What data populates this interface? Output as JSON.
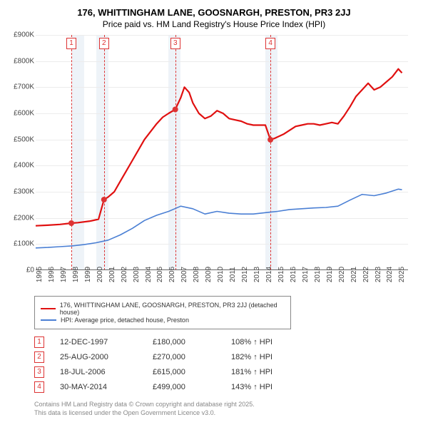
{
  "title": "176, WHITTINGHAM LANE, GOOSNARGH, PRESTON, PR3 2JJ",
  "subtitle": "Price paid vs. HM Land Registry's House Price Index (HPI)",
  "chart": {
    "type": "line",
    "background_color": "#ffffff",
    "grid_color": "#ececec",
    "band_color": "#eef3f8",
    "x": {
      "min": 1995,
      "max": 2025.8,
      "ticks": [
        1995,
        1996,
        1997,
        1998,
        1999,
        2000,
        2001,
        2002,
        2003,
        2004,
        2005,
        2006,
        2007,
        2008,
        2009,
        2010,
        2011,
        2012,
        2013,
        2014,
        2015,
        2016,
        2017,
        2018,
        2019,
        2020,
        2021,
        2022,
        2023,
        2024,
        2025
      ],
      "label_fontsize": 10
    },
    "y": {
      "min": 0,
      "max": 900000,
      "tick_step": 100000,
      "format_prefix": "£",
      "format_suffix": "K",
      "label_fontsize": 10
    },
    "bands": [
      {
        "from": 1998,
        "to": 1999
      },
      {
        "from": 2000,
        "to": 2001
      },
      {
        "from": 2006,
        "to": 2007
      },
      {
        "from": 2014,
        "to": 2015
      }
    ],
    "events": [
      {
        "n": "1",
        "x": 1997.95
      },
      {
        "n": "2",
        "x": 2000.65
      },
      {
        "n": "3",
        "x": 2006.55
      },
      {
        "n": "4",
        "x": 2014.42
      }
    ],
    "series": [
      {
        "key": "price_paid",
        "label": "176, WHITTINGHAM LANE, GOOSNARGH, PRESTON, PR3 2JJ (detached house)",
        "color": "#e01010",
        "width": 2.2,
        "points": [
          [
            1995,
            170000
          ],
          [
            1996,
            172000
          ],
          [
            1997,
            175000
          ],
          [
            1997.95,
            180000
          ],
          [
            1998.5,
            182000
          ],
          [
            1999.5,
            188000
          ],
          [
            2000.2,
            195000
          ],
          [
            2000.65,
            270000
          ],
          [
            2001,
            280000
          ],
          [
            2001.5,
            300000
          ],
          [
            2002,
            340000
          ],
          [
            2002.5,
            380000
          ],
          [
            2003,
            420000
          ],
          [
            2003.5,
            460000
          ],
          [
            2004,
            500000
          ],
          [
            2004.5,
            530000
          ],
          [
            2005,
            560000
          ],
          [
            2005.5,
            585000
          ],
          [
            2006,
            600000
          ],
          [
            2006.55,
            615000
          ],
          [
            2007,
            660000
          ],
          [
            2007.3,
            700000
          ],
          [
            2007.7,
            680000
          ],
          [
            2008,
            640000
          ],
          [
            2008.5,
            600000
          ],
          [
            2009,
            580000
          ],
          [
            2009.5,
            590000
          ],
          [
            2010,
            610000
          ],
          [
            2010.5,
            600000
          ],
          [
            2011,
            580000
          ],
          [
            2011.5,
            575000
          ],
          [
            2012,
            570000
          ],
          [
            2012.5,
            560000
          ],
          [
            2013,
            555000
          ],
          [
            2013.5,
            555000
          ],
          [
            2014,
            555000
          ],
          [
            2014.42,
            499000
          ],
          [
            2014.8,
            505000
          ],
          [
            2015.5,
            520000
          ],
          [
            2016,
            535000
          ],
          [
            2016.5,
            550000
          ],
          [
            2017,
            555000
          ],
          [
            2017.5,
            560000
          ],
          [
            2018,
            560000
          ],
          [
            2018.5,
            555000
          ],
          [
            2019,
            560000
          ],
          [
            2019.5,
            565000
          ],
          [
            2020,
            560000
          ],
          [
            2020.5,
            590000
          ],
          [
            2021,
            625000
          ],
          [
            2021.5,
            665000
          ],
          [
            2022,
            690000
          ],
          [
            2022.5,
            715000
          ],
          [
            2023,
            690000
          ],
          [
            2023.5,
            700000
          ],
          [
            2024,
            720000
          ],
          [
            2024.5,
            740000
          ],
          [
            2025,
            770000
          ],
          [
            2025.3,
            755000
          ]
        ],
        "markers": [
          {
            "x": 1997.95,
            "y": 180000
          },
          {
            "x": 2000.65,
            "y": 270000
          },
          {
            "x": 2006.55,
            "y": 615000
          },
          {
            "x": 2014.42,
            "y": 499000
          }
        ]
      },
      {
        "key": "hpi",
        "label": "HPI: Average price, detached house, Preston",
        "color": "#4a7fd4",
        "width": 1.6,
        "points": [
          [
            1995,
            85000
          ],
          [
            1996,
            87000
          ],
          [
            1997,
            90000
          ],
          [
            1998,
            93000
          ],
          [
            1999,
            98000
          ],
          [
            2000,
            105000
          ],
          [
            2001,
            115000
          ],
          [
            2002,
            135000
          ],
          [
            2003,
            160000
          ],
          [
            2004,
            190000
          ],
          [
            2005,
            210000
          ],
          [
            2006,
            225000
          ],
          [
            2007,
            245000
          ],
          [
            2008,
            235000
          ],
          [
            2009,
            215000
          ],
          [
            2010,
            225000
          ],
          [
            2011,
            218000
          ],
          [
            2012,
            215000
          ],
          [
            2013,
            215000
          ],
          [
            2014,
            220000
          ],
          [
            2015,
            225000
          ],
          [
            2016,
            232000
          ],
          [
            2017,
            235000
          ],
          [
            2018,
            238000
          ],
          [
            2019,
            240000
          ],
          [
            2020,
            245000
          ],
          [
            2021,
            268000
          ],
          [
            2022,
            290000
          ],
          [
            2023,
            285000
          ],
          [
            2024,
            295000
          ],
          [
            2025,
            310000
          ],
          [
            2025.3,
            308000
          ]
        ]
      }
    ]
  },
  "legend": {
    "items": [
      {
        "color": "#e01010",
        "label": "176, WHITTINGHAM LANE, GOOSNARGH, PRESTON, PR3 2JJ (detached house)"
      },
      {
        "color": "#4a7fd4",
        "label": "HPI: Average price, detached house, Preston"
      }
    ]
  },
  "table": {
    "rows": [
      {
        "n": "1",
        "date": "12-DEC-1997",
        "price": "£180,000",
        "pct": "108% ↑ HPI"
      },
      {
        "n": "2",
        "date": "25-AUG-2000",
        "price": "£270,000",
        "pct": "182% ↑ HPI"
      },
      {
        "n": "3",
        "date": "18-JUL-2006",
        "price": "£615,000",
        "pct": "181% ↑ HPI"
      },
      {
        "n": "4",
        "date": "30-MAY-2014",
        "price": "£499,000",
        "pct": "143% ↑ HPI"
      }
    ]
  },
  "footer": {
    "line1": "Contains HM Land Registry data © Crown copyright and database right 2025.",
    "line2": "This data is licensed under the Open Government Licence v3.0."
  }
}
